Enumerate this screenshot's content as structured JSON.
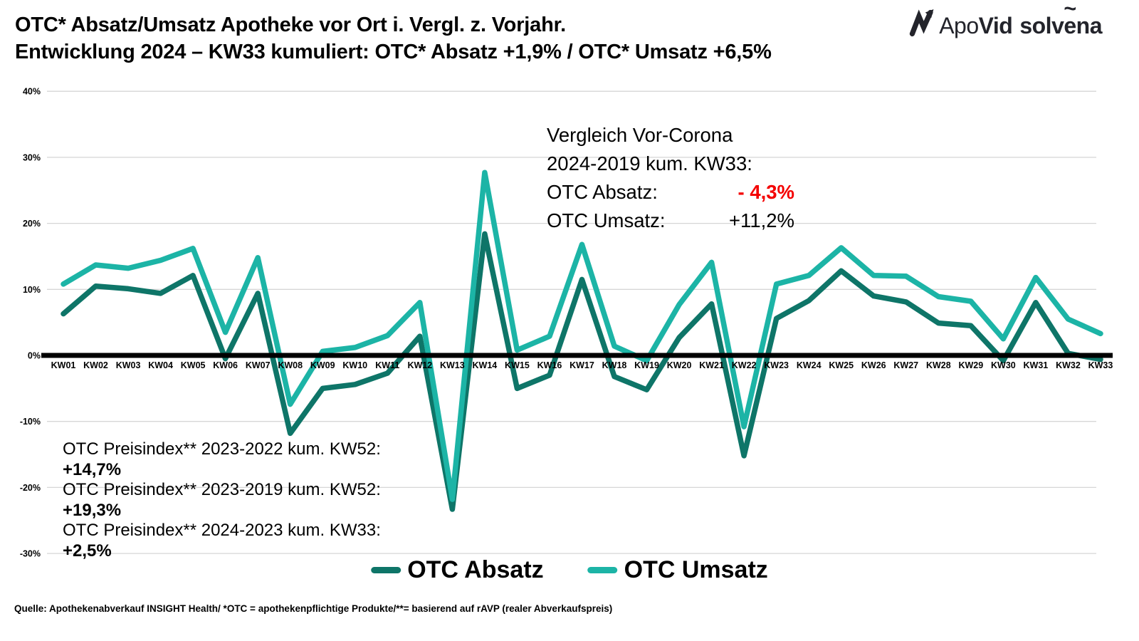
{
  "header": {
    "title_line1": "OTC* Absatz/Umsatz Apotheke vor Ort i. Vergl. z. Vorjahr.",
    "title_line2": "Entwicklung 2024 – KW33 kumuliert: OTC* Absatz +1,9% / OTC* Umsatz +6,5%"
  },
  "logo": {
    "icon": "zigzag-arrow",
    "word1_regular": "Apo",
    "word1_bold": "Vid",
    "word2_pre": "solv",
    "word2_accent_letter": "e",
    "word2_accent": "~",
    "word2_post": "na",
    "color": "#23242b"
  },
  "annotations": {
    "vor_corona": {
      "line1": "Vergleich Vor-Corona",
      "line2": "2024-2019 kum. KW33:",
      "absatz_label": "OTC Absatz:",
      "absatz_value": "- 4,3%",
      "absatz_value_color": "#f40000",
      "umsatz_label": "OTC Umsatz:",
      "umsatz_value": "+11,2%"
    },
    "preisindex": [
      {
        "label": "OTC Preisindex** 2023-2022 kum. KW52:",
        "value": "+14,7%"
      },
      {
        "label": "OTC Preisindex** 2023-2019 kum. KW52:",
        "value": "+19,3%"
      },
      {
        "label": "OTC Preisindex** 2024-2023 kum. KW33:",
        "value": "+2,5%"
      }
    ]
  },
  "legend": [
    {
      "label": "OTC Absatz",
      "color": "#0e7568"
    },
    {
      "label": "OTC Umsatz",
      "color": "#1cb4a6"
    }
  ],
  "footer": "Quelle: Apothekenabverkauf INSIGHT Health/ *OTC = apothekenpflichtige Produkte/**= basierend auf rAVP (realer Abverkaufspreis)",
  "chart_data": {
    "type": "line",
    "categories": [
      "KW01",
      "KW02",
      "KW03",
      "KW04",
      "KW05",
      "KW06",
      "KW07",
      "KW08",
      "KW09",
      "KW10",
      "KW11",
      "KW12",
      "KW13",
      "KW14",
      "KW15",
      "KW16",
      "KW17",
      "KW18",
      "KW19",
      "KW20",
      "KW21",
      "KW22",
      "KW23",
      "KW24",
      "KW25",
      "KW26",
      "KW27",
      "KW28",
      "KW29",
      "KW30",
      "KW31",
      "KW32",
      "KW33"
    ],
    "series": [
      {
        "name": "OTC Absatz",
        "color": "#0e7568",
        "values": [
          6.3,
          10.5,
          10.1,
          9.4,
          12.1,
          -0.5,
          9.4,
          -11.8,
          -5.0,
          -4.4,
          -2.7,
          2.9,
          -23.3,
          18.4,
          -5.0,
          -3.0,
          11.5,
          -3.2,
          -5.2,
          2.7,
          7.8,
          -15.2,
          5.6,
          8.3,
          12.8,
          9.0,
          8.1,
          4.9,
          4.5,
          -0.8,
          8.0,
          0.3,
          -0.6
        ]
      },
      {
        "name": "OTC Umsatz",
        "color": "#1cb4a6",
        "values": [
          10.8,
          13.7,
          13.2,
          14.4,
          16.2,
          3.5,
          14.8,
          -7.4,
          0.6,
          1.2,
          3.0,
          8.0,
          -21.8,
          27.7,
          0.8,
          2.9,
          16.8,
          1.4,
          -0.8,
          7.7,
          14.1,
          -10.8,
          10.8,
          12.1,
          16.3,
          12.1,
          12.0,
          8.9,
          8.2,
          2.5,
          11.8,
          5.5,
          3.3
        ]
      }
    ],
    "ylim": [
      -30,
      40
    ],
    "ytick_step": 10,
    "ytick_format": "percent",
    "grid": true,
    "zero_line": true,
    "legend_position": "bottom",
    "grid_color": "#d6d6d6",
    "zero_line_color": "#000000"
  }
}
